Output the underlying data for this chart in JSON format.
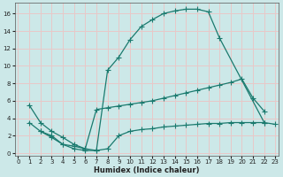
{
  "xlabel": "Humidex (Indice chaleur)",
  "bg_color": "#cce8e8",
  "grid_color": "#e8c8c8",
  "line_color": "#1a7a6e",
  "xlim": [
    -0.3,
    23.3
  ],
  "ylim": [
    -0.3,
    17.2
  ],
  "xticks": [
    0,
    1,
    2,
    3,
    4,
    5,
    6,
    7,
    8,
    9,
    10,
    11,
    12,
    13,
    14,
    15,
    16,
    17,
    18,
    19,
    20,
    21,
    22,
    23
  ],
  "yticks": [
    0,
    2,
    4,
    6,
    8,
    10,
    12,
    14,
    16
  ],
  "curve1_x": [
    1,
    2,
    3,
    4,
    5,
    6,
    7,
    8,
    9,
    10,
    11,
    12,
    13,
    14,
    15,
    16,
    17,
    18,
    22
  ],
  "curve1_y": [
    5.5,
    3.5,
    2.5,
    1.8,
    1.0,
    0.5,
    0.3,
    9.5,
    11.0,
    13.0,
    14.5,
    15.3,
    16.0,
    16.3,
    16.5,
    16.5,
    16.2,
    13.2,
    3.5
  ],
  "curve2_x": [
    2,
    3,
    4,
    5,
    6,
    7,
    8,
    9,
    10,
    11,
    12,
    13,
    14,
    15,
    16,
    17,
    18,
    19,
    20,
    21,
    22
  ],
  "curve2_y": [
    2.5,
    2.0,
    1.0,
    0.8,
    0.5,
    5.0,
    5.2,
    5.4,
    5.6,
    5.8,
    6.0,
    6.3,
    6.6,
    6.9,
    7.2,
    7.5,
    7.8,
    8.1,
    8.5,
    6.3,
    4.8
  ],
  "curve3_x": [
    1,
    2,
    3,
    4,
    5,
    6,
    7,
    8,
    9,
    10,
    11,
    12,
    13,
    14,
    15,
    16,
    17,
    18,
    19,
    20,
    21,
    22,
    23
  ],
  "curve3_y": [
    3.5,
    2.5,
    1.8,
    1.0,
    0.5,
    0.3,
    0.3,
    0.5,
    2.0,
    2.5,
    2.7,
    2.8,
    3.0,
    3.1,
    3.2,
    3.3,
    3.4,
    3.4,
    3.5,
    3.5,
    3.5,
    3.5,
    3.3
  ]
}
